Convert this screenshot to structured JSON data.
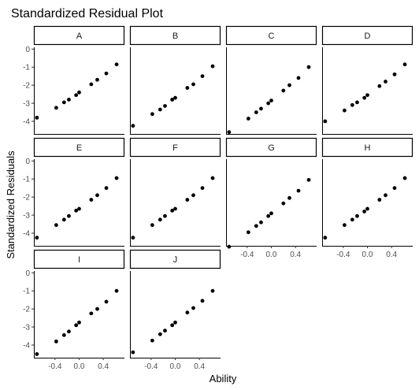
{
  "chart_data": {
    "type": "scatter",
    "title": "Standardized Residual Plot",
    "xlabel": "Ability",
    "ylabel": "Standardized Residuals",
    "xlim": [
      -0.75,
      0.75
    ],
    "ylim": [
      -4.7,
      0.1
    ],
    "x_ticks": [
      -0.4,
      0.0,
      0.4
    ],
    "x_tick_labels": [
      "-0.4",
      "0.0",
      "0.4"
    ],
    "y_ticks": [
      0,
      -1,
      -2,
      -3,
      -4
    ],
    "y_tick_labels": [
      "0",
      "-1",
      "-2",
      "-3",
      "-4"
    ],
    "grid": false,
    "legend": "none",
    "point_color": "#000000",
    "panels": [
      {
        "name": "A",
        "x": [
          -0.7,
          -0.38,
          -0.25,
          -0.17,
          -0.05,
          0.0,
          0.2,
          0.3,
          0.45,
          0.62
        ],
        "y": [
          -3.8,
          -3.25,
          -2.95,
          -2.8,
          -2.55,
          -2.4,
          -1.95,
          -1.7,
          -1.35,
          -0.85
        ]
      },
      {
        "name": "B",
        "x": [
          -0.7,
          -0.38,
          -0.25,
          -0.17,
          -0.05,
          0.0,
          0.2,
          0.3,
          0.45,
          0.62
        ],
        "y": [
          -4.25,
          -3.6,
          -3.35,
          -3.15,
          -2.8,
          -2.7,
          -2.15,
          -1.95,
          -1.5,
          -0.95
        ]
      },
      {
        "name": "C",
        "x": [
          -0.7,
          -0.38,
          -0.25,
          -0.17,
          -0.05,
          0.0,
          0.2,
          0.3,
          0.45,
          0.62
        ],
        "y": [
          -4.6,
          -3.85,
          -3.5,
          -3.3,
          -3.0,
          -2.85,
          -2.3,
          -2.0,
          -1.6,
          -1.0
        ]
      },
      {
        "name": "D",
        "x": [
          -0.7,
          -0.38,
          -0.25,
          -0.17,
          -0.05,
          0.0,
          0.2,
          0.3,
          0.45,
          0.62
        ],
        "y": [
          -4.0,
          -3.4,
          -3.1,
          -2.95,
          -2.7,
          -2.55,
          -2.05,
          -1.8,
          -1.4,
          -0.85
        ]
      },
      {
        "name": "E",
        "x": [
          -0.7,
          -0.38,
          -0.25,
          -0.17,
          -0.05,
          0.0,
          0.2,
          0.3,
          0.45,
          0.62
        ],
        "y": [
          -4.25,
          -3.55,
          -3.25,
          -3.05,
          -2.75,
          -2.65,
          -2.15,
          -1.9,
          -1.5,
          -0.95
        ]
      },
      {
        "name": "F",
        "x": [
          -0.7,
          -0.38,
          -0.25,
          -0.17,
          -0.05,
          0.0,
          0.2,
          0.3,
          0.45,
          0.62
        ],
        "y": [
          -4.25,
          -3.55,
          -3.25,
          -3.05,
          -2.75,
          -2.65,
          -2.15,
          -1.9,
          -1.5,
          -0.95
        ]
      },
      {
        "name": "G",
        "x": [
          -0.7,
          -0.38,
          -0.25,
          -0.17,
          -0.05,
          0.0,
          0.2,
          0.3,
          0.45,
          0.62
        ],
        "y": [
          -4.75,
          -3.95,
          -3.6,
          -3.4,
          -3.05,
          -2.9,
          -2.35,
          -2.05,
          -1.65,
          -1.05
        ]
      },
      {
        "name": "H",
        "x": [
          -0.7,
          -0.38,
          -0.25,
          -0.17,
          -0.05,
          0.0,
          0.2,
          0.3,
          0.45,
          0.62
        ],
        "y": [
          -4.25,
          -3.55,
          -3.25,
          -3.05,
          -2.8,
          -2.65,
          -2.15,
          -1.9,
          -1.5,
          -0.95
        ]
      },
      {
        "name": "I",
        "x": [
          -0.7,
          -0.38,
          -0.25,
          -0.17,
          -0.05,
          0.0,
          0.2,
          0.3,
          0.45,
          0.62
        ],
        "y": [
          -4.5,
          -3.8,
          -3.45,
          -3.25,
          -2.9,
          -2.75,
          -2.25,
          -2.0,
          -1.6,
          -1.0
        ]
      },
      {
        "name": "J",
        "x": [
          -0.7,
          -0.38,
          -0.25,
          -0.17,
          -0.05,
          0.0,
          0.2,
          0.3,
          0.45,
          0.62
        ],
        "y": [
          -4.4,
          -3.75,
          -3.4,
          -3.2,
          -2.9,
          -2.75,
          -2.2,
          -1.95,
          -1.55,
          -1.0
        ]
      }
    ]
  }
}
